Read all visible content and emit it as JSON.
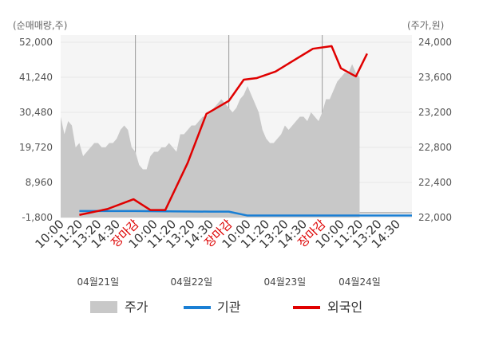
{
  "chart_data": {
    "type": "line",
    "left_axis_label": "(순매매량,주)",
    "right_axis_label": "(주가,원)",
    "left_ticks": [
      "52,000",
      "41,240",
      "30,480",
      "19,720",
      "8,960",
      "-1,800"
    ],
    "right_ticks": [
      "24,000",
      "23,600",
      "23,200",
      "22,800",
      "22,400",
      "22,000"
    ],
    "left_ylim": [
      -1800,
      52000
    ],
    "right_ylim": [
      22000,
      24000
    ],
    "x_tick_labels": [
      "10:00",
      "11:20",
      "13:20",
      "14:30",
      "장마감",
      "10:00",
      "11:20",
      "13:20",
      "14:30",
      "장마감",
      "10:00",
      "11:20",
      "13:20",
      "14:30",
      "장마감",
      "10:00",
      "11:20",
      "13:20",
      "14:30"
    ],
    "x_tick_red": [
      false,
      false,
      false,
      false,
      true,
      false,
      false,
      false,
      false,
      true,
      false,
      false,
      false,
      false,
      true,
      false,
      false,
      false,
      false
    ],
    "dates": [
      "04월21일",
      "04월22일",
      "04월23일",
      "04월24일"
    ],
    "series": [
      {
        "name": "주가",
        "kind": "area",
        "axis": "right",
        "color": "#c8c8c8",
        "x": [
          0.0,
          0.2,
          0.4,
          0.6,
          0.8,
          1.0,
          1.2,
          1.4,
          1.6,
          1.8,
          2.0,
          2.2,
          2.4,
          2.6,
          2.8,
          3.0,
          3.2,
          3.4,
          3.6,
          3.8,
          4.0,
          4.2,
          4.4,
          4.6,
          4.8,
          5.0,
          5.2,
          5.4,
          5.6,
          5.8,
          6.0,
          6.2,
          6.4,
          6.6,
          6.8,
          7.0,
          7.2,
          7.4,
          7.6,
          7.8,
          8.0,
          8.2,
          8.4,
          8.6,
          8.8,
          9.0,
          9.2,
          9.4,
          9.6,
          9.8,
          10.0,
          10.2,
          10.4,
          10.6,
          10.8,
          11.0,
          11.2,
          11.4,
          11.6,
          11.8,
          12.0,
          12.2,
          12.4,
          12.6,
          12.8,
          13.0,
          13.2,
          13.4,
          13.6,
          13.8,
          14.0,
          14.2,
          14.4,
          14.6,
          14.8,
          15.0,
          15.2,
          15.4,
          15.6,
          15.8,
          16.0
        ],
        "values": [
          23150,
          22950,
          23100,
          23050,
          22800,
          22850,
          22700,
          22750,
          22800,
          22850,
          22850,
          22800,
          22800,
          22850,
          22850,
          22900,
          23000,
          23050,
          23000,
          22800,
          22750,
          22600,
          22550,
          22550,
          22700,
          22750,
          22750,
          22800,
          22800,
          22850,
          22800,
          22750,
          22950,
          22950,
          23000,
          23050,
          23050,
          23100,
          23150,
          23150,
          23200,
          23250,
          23300,
          23350,
          23300,
          23250,
          23200,
          23250,
          23350,
          23400,
          23500,
          23400,
          23300,
          23200,
          23000,
          22900,
          22850,
          22850,
          22900,
          22950,
          23050,
          23000,
          23050,
          23100,
          23150,
          23150,
          23100,
          23200,
          23150,
          23100,
          23200,
          23350,
          23350,
          23450,
          23550,
          23600,
          23650,
          23650,
          23750,
          23650,
          23600
        ]
      },
      {
        "name": "기관",
        "kind": "line",
        "axis": "left",
        "color": "#1a7fd4",
        "x": [
          1.0,
          3.0,
          4.0,
          8.0,
          9.0,
          10.0,
          15.0,
          18.8
        ],
        "values": [
          200,
          200,
          200,
          0,
          0,
          -1200,
          -1200,
          -1200
        ]
      },
      {
        "name": "외국인",
        "kind": "line",
        "axis": "left",
        "color": "#e00000",
        "x": [
          1.0,
          2.5,
          3.9,
          4.8,
          5.2,
          5.6,
          6.8,
          7.8,
          9.0,
          9.8,
          10.5,
          11.5,
          12.5,
          13.5,
          14.5,
          15.0,
          15.8,
          16.4
        ],
        "values": [
          -1000,
          800,
          3800,
          500,
          500,
          500,
          15000,
          30000,
          34000,
          40500,
          41000,
          43000,
          46500,
          50000,
          50800,
          44000,
          41500,
          48500
        ]
      }
    ]
  }
}
